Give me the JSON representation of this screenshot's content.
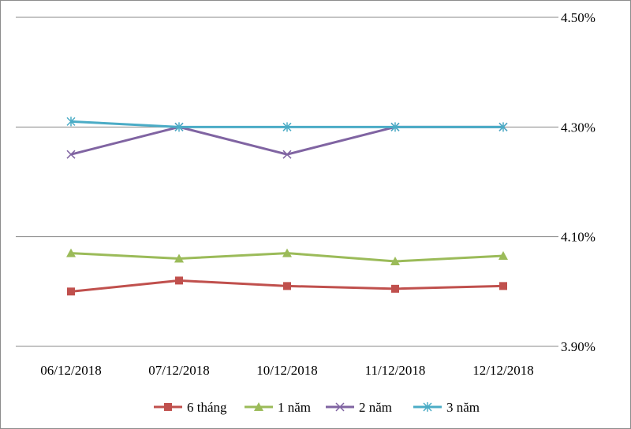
{
  "chart_data": {
    "type": "line",
    "title": "",
    "xlabel": "",
    "ylabel": "",
    "categories": [
      "06/12/2018",
      "07/12/2018",
      "10/12/2018",
      "11/12/2018",
      "12/12/2018"
    ],
    "ylim": [
      3.9,
      4.5
    ],
    "yticks": [
      3.9,
      4.1,
      4.3,
      4.5
    ],
    "ytick_labels": [
      "3.90%",
      "4.10%",
      "4.30%",
      "4.50%"
    ],
    "grid": true,
    "legend_position": "bottom",
    "series": [
      {
        "name": "6 tháng",
        "values": [
          4.0,
          4.02,
          4.01,
          4.005,
          4.01
        ],
        "color": "#c0504d",
        "marker": "square"
      },
      {
        "name": "1 năm",
        "values": [
          4.07,
          4.06,
          4.07,
          4.055,
          4.065
        ],
        "color": "#9bbb59",
        "marker": "triangle"
      },
      {
        "name": "2 năm",
        "values": [
          4.25,
          4.3,
          4.25,
          4.3,
          4.3
        ],
        "color": "#8064a2",
        "marker": "x"
      },
      {
        "name": "3 năm",
        "values": [
          4.31,
          4.3,
          4.3,
          4.3,
          4.3
        ],
        "color": "#4bacc6",
        "marker": "star"
      }
    ]
  }
}
